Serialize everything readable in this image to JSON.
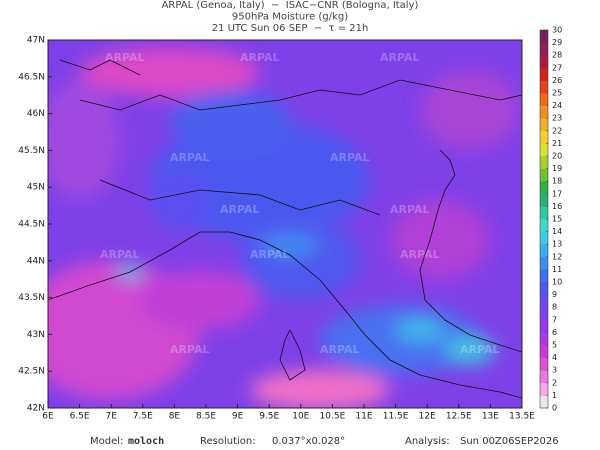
{
  "header": {
    "lines": [
      "ARPAL (Genoa, Italy)  −  ISAC−CNR (Bologna, Italy)",
      "950hPa Moisture (g/kg)",
      "21 UTC Sun 06 SEP  −  τ = 21h"
    ]
  },
  "map": {
    "watermark": "ARPAL",
    "lat_labels": [
      "47N",
      "46.5N",
      "46N",
      "45.5N",
      "45N",
      "44.5N",
      "44N",
      "43.5N",
      "43N",
      "42.5N",
      "42N"
    ],
    "lon_labels": [
      "6E",
      "6.5E",
      "7E",
      "7.5E",
      "8E",
      "8.5E",
      "9E",
      "9.5E",
      "10E",
      "10.5E",
      "11E",
      "11.5E",
      "12E",
      "12.5E",
      "13E",
      "13.5E"
    ]
  },
  "colorbar": {
    "ticks": [
      0,
      1,
      2,
      3,
      4,
      5,
      6,
      7,
      8,
      9,
      10,
      11,
      12,
      13,
      14,
      15,
      16,
      17,
      18,
      19,
      20,
      21,
      22,
      23,
      24,
      25,
      26,
      27,
      28,
      29,
      30
    ],
    "colors": [
      "#e8e8e8",
      "#f4a8e8",
      "#ec78dc",
      "#e050d4",
      "#cc38d8",
      "#b038e4",
      "#9838ec",
      "#8040f0",
      "#6848f0",
      "#5058f0",
      "#4070f0",
      "#3c8cf0",
      "#3cacf0",
      "#3cc8e8",
      "#3cd8c8",
      "#30c8a0",
      "#28b078",
      "#30b040",
      "#70c030",
      "#a8d030",
      "#d8e030",
      "#f0d030",
      "#f0b028",
      "#f09020",
      "#f06818",
      "#e84018",
      "#d02020",
      "#b01840",
      "#902050",
      "#702060"
    ]
  },
  "footer": {
    "model_label": "Model:",
    "model": "moloch",
    "resolution_label": "Resolution:",
    "resolution": "0.037°x0.028°",
    "analysis_label": "Analysis:",
    "analysis": "Sun 00Z06SEP2026"
  }
}
